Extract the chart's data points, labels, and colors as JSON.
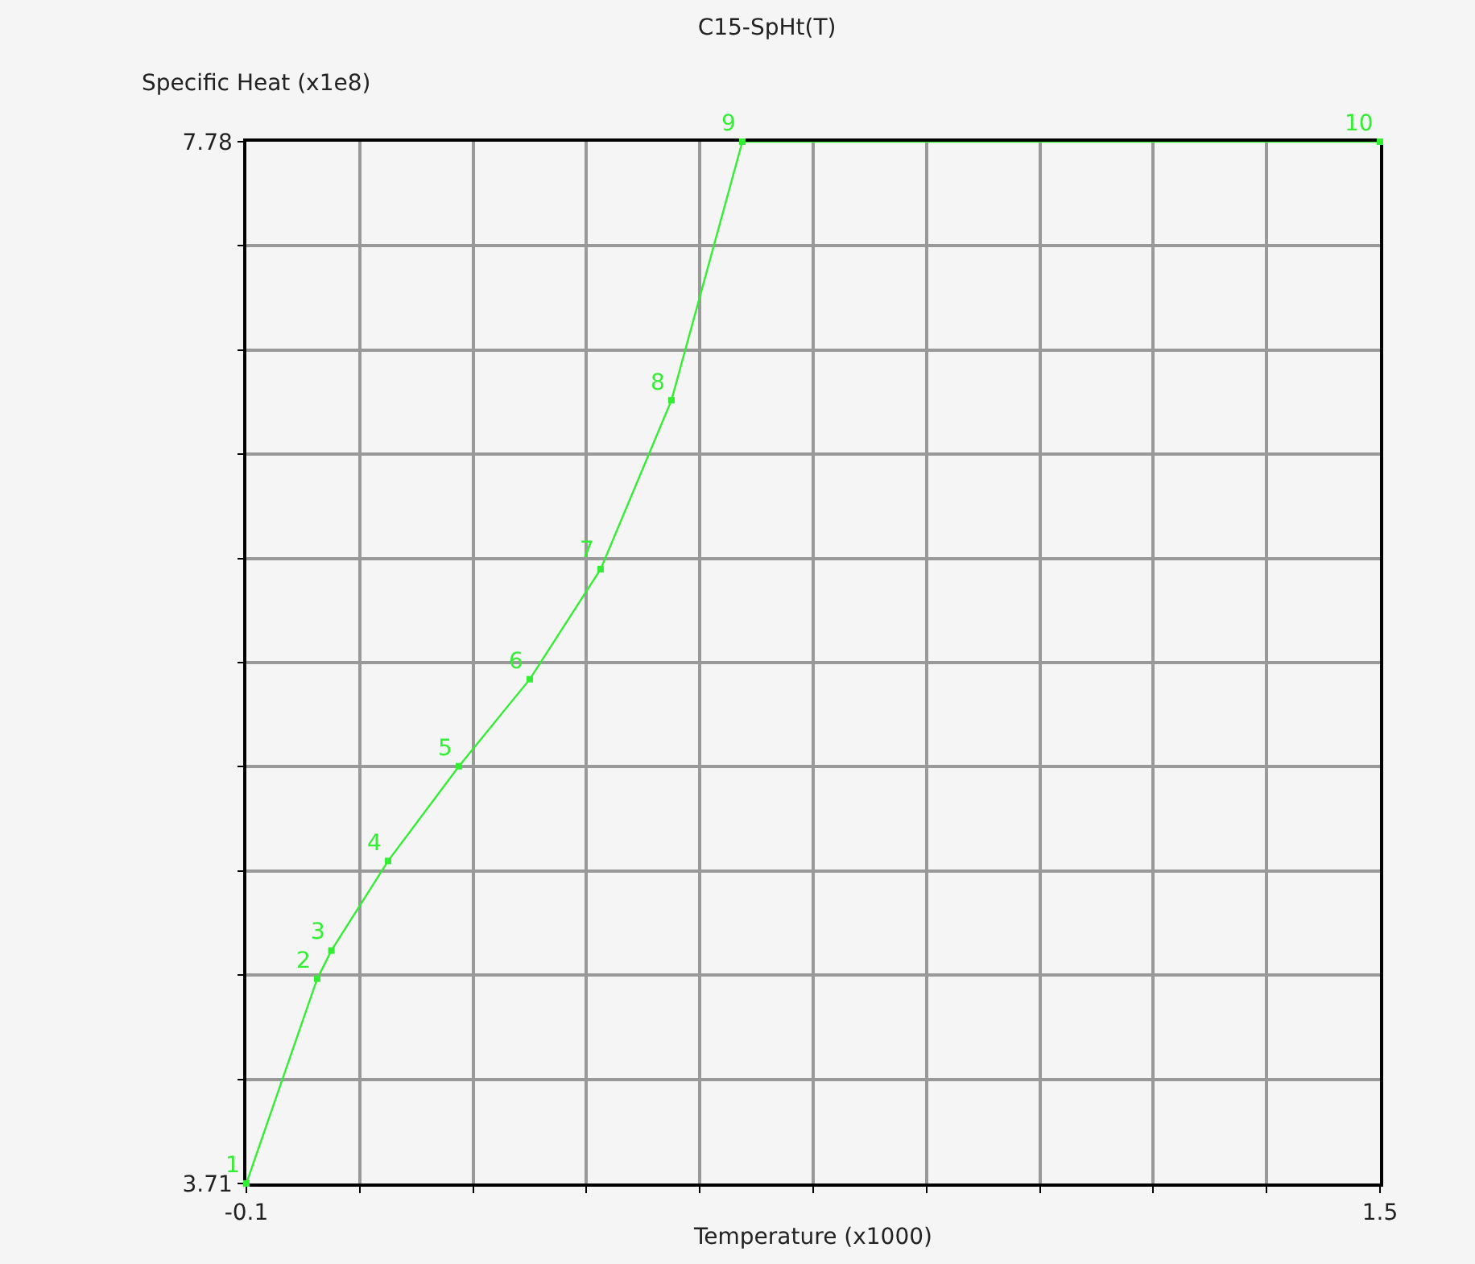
{
  "chart_data": {
    "type": "line",
    "title": "C15-SpHt(T)",
    "xlabel": "Temperature (x1000)",
    "ylabel": "Specific Heat (x1e8)",
    "x": [
      -0.1,
      0.0,
      0.02,
      0.1,
      0.2,
      0.3,
      0.4,
      0.5,
      0.6,
      1.5
    ],
    "series": [
      {
        "color": "#33ee33",
        "values": [
          3.71,
          4.51,
          4.62,
          4.97,
          5.34,
          5.68,
          6.11,
          6.77,
          7.78,
          7.78
        ]
      }
    ],
    "annotations": [
      {
        "text": "1",
        "x": -0.1,
        "y": 3.71
      },
      {
        "text": "2",
        "x": 0.0,
        "y": 4.51
      },
      {
        "text": "3",
        "x": 0.02,
        "y": 4.62
      },
      {
        "text": "4",
        "x": 0.1,
        "y": 4.97
      },
      {
        "text": "5",
        "x": 0.2,
        "y": 5.34
      },
      {
        "text": "6",
        "x": 0.3,
        "y": 5.68
      },
      {
        "text": "7",
        "x": 0.4,
        "y": 6.11
      },
      {
        "text": "8",
        "x": 0.5,
        "y": 6.77
      },
      {
        "text": "9",
        "x": 0.6,
        "y": 7.78
      },
      {
        "text": "10",
        "x": 1.5,
        "y": 7.78
      }
    ],
    "xlim": [
      -0.1,
      1.5
    ],
    "ylim": [
      3.71,
      7.78
    ],
    "xticks": [
      -0.1,
      {
        "value": 0.06,
        "label": null
      },
      {
        "value": 0.22,
        "label": null
      },
      {
        "value": 0.38,
        "label": null
      },
      {
        "value": 0.54,
        "label": null
      },
      {
        "value": 0.7,
        "label": null
      },
      {
        "value": 0.86,
        "label": null
      },
      {
        "value": 1.02,
        "label": null
      },
      {
        "value": 1.18,
        "label": null
      },
      {
        "value": 1.34,
        "label": null
      },
      1.5
    ],
    "yticks": [
      3.71,
      {
        "value": 4.117,
        "label": null
      },
      {
        "value": 4.524,
        "label": null
      },
      {
        "value": 4.931,
        "label": null
      },
      {
        "value": 5.338,
        "label": null
      },
      {
        "value": 5.745,
        "label": null
      },
      {
        "value": 6.152,
        "label": null
      },
      {
        "value": 6.559,
        "label": null
      },
      {
        "value": 6.966,
        "label": null
      },
      {
        "value": 7.373,
        "label": null
      },
      7.78
    ],
    "grid": true,
    "marker": "square",
    "line_style": "solid"
  }
}
